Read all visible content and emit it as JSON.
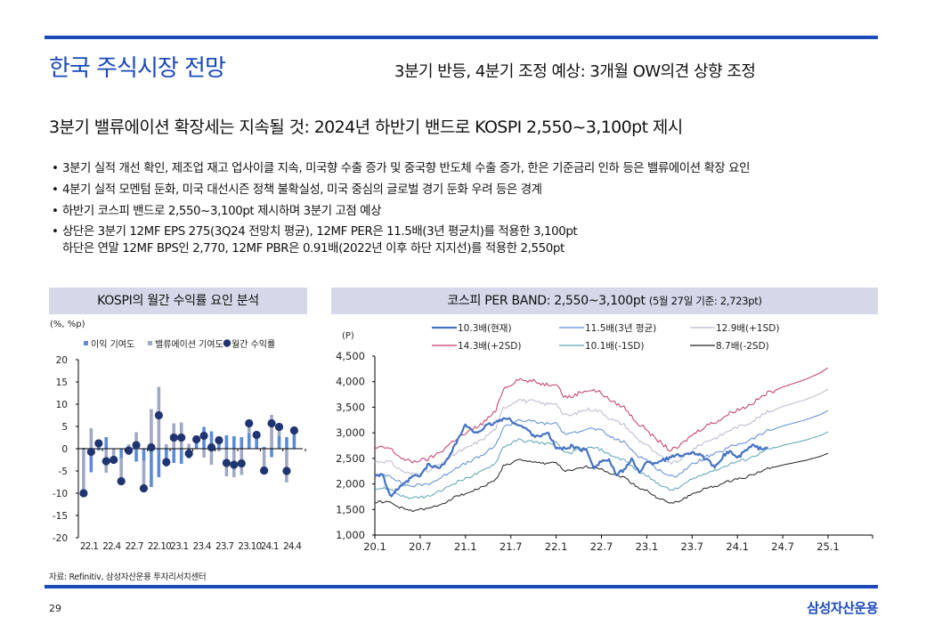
{
  "header": {
    "title": "한국 주식시장 전망",
    "subtitle": "3분기 반등, 4분기 조정 예상: 3개월 OW의견 상향 조정"
  },
  "headline": "3분기 밸류에이션 확장세는 지속될 것: 2024년 하반기 밴드로 KOSPI 2,550~3,100pt  제시",
  "bullets": [
    {
      "lines": [
        "3분기 실적 개선 확인, 제조업 재고 업사이클 지속, 미국향 수출 증가 및 중국향 반도체 수출 증가, 한은 기준금리 인하 등은 밸류에이션 확장 요인"
      ]
    },
    {
      "lines": [
        "4분기 실적 모멘텀 둔화, 미국 대선시즌 정책 불확실성, 미국 중심의 글로벌 경기 둔화 우려 등은 경계"
      ]
    },
    {
      "lines": [
        "하반기 코스피 밴드로 2,550~3,100pt  제시하며 3분기 고점 예상"
      ]
    },
    {
      "lines": [
        "상단은 3분기 12MF EPS 275(3Q24  전망치 평균), 12MF PER은 11.5배(3년 평균치)를 적용한 3,100pt",
        "하단은 연말 12MF BPS인 2,770, 12MF PBR은 0.91배(2022년 이후 하단 지지선)를 적용한 2,550pt"
      ]
    }
  ],
  "bullet_symbol": "•",
  "footer": {
    "source": "자료: Refinitiv, 삼성자산운용 투자리서치센터",
    "page_number": "29",
    "brand": "삼성자산운용"
  },
  "colors": {
    "accent": "#1a49b8",
    "panel_head_bg": "#d4d8e8",
    "eps_bar": "#5b8ad6",
    "valuation_bar": "#a0a8c4",
    "return_dot": "#1f3470",
    "kospi": "#4472c4",
    "band_mean": "#5b8ad6",
    "band_plus1": "#b7b9cc",
    "band_plus2": "#c0396b",
    "band_minus1": "#5aa3b4",
    "band_minus2": "#222222"
  },
  "chart_data": [
    {
      "type": "bar",
      "title": "KOSPI의 월간 수익률 요인 분석",
      "unit_label": "(%, %p)",
      "ylim": [
        -20,
        20
      ],
      "yticks": [
        "20",
        "15",
        "10",
        "5",
        "0",
        "-5",
        "-10",
        "-15",
        "-20"
      ],
      "ytick_values": [
        20,
        15,
        10,
        5,
        0,
        -5,
        -10,
        -15,
        -20
      ],
      "xtick_labels": [
        "22.1",
        "22.4",
        "22.7",
        "22.10",
        "23.1",
        "23.4",
        "23.7",
        "23.10",
        "24.1",
        "24.4"
      ],
      "xtick_every": 3,
      "legend": [
        "이익 기여도",
        "밸류에이션 기여도",
        "월간 수익률"
      ],
      "legend_position": "top",
      "categories": [
        "22.1",
        "22.2",
        "22.3",
        "22.4",
        "22.5",
        "22.6",
        "22.7",
        "22.8",
        "22.9",
        "22.10",
        "22.11",
        "22.12",
        "23.1",
        "23.2",
        "23.3",
        "23.4",
        "23.5",
        "23.6",
        "23.7",
        "23.8",
        "23.9",
        "23.10",
        "23.11",
        "23.12",
        "24.1",
        "24.2",
        "24.3",
        "24.4",
        "24.5"
      ],
      "series": [
        {
          "name": "이익 기여도",
          "kind": "bar",
          "values": [
            0.2,
            -5.3,
            -0.4,
            2.6,
            0.1,
            -2.1,
            -1.4,
            -2.9,
            -2.7,
            -8.6,
            -6.4,
            -4.0,
            -3.2,
            -3.4,
            -2.2,
            1.9,
            4.9,
            3.9,
            2.5,
            3.0,
            2.8,
            2.6,
            3.4,
            2.9,
            0.4,
            -1.9,
            2.8,
            2.6,
            4.1
          ]
        },
        {
          "name": "밸류에이션 기여도",
          "kind": "bar",
          "values": [
            -10.2,
            4.6,
            1.6,
            -5.4,
            -2.6,
            -5.2,
            1.0,
            3.7,
            -6.2,
            8.9,
            13.9,
            1.0,
            5.7,
            5.9,
            1.1,
            0.2,
            -2.0,
            -3.6,
            -0.6,
            -6.2,
            -6.4,
            -5.9,
            2.3,
            0.2,
            -5.3,
            7.6,
            2.1,
            -7.6,
            0.0
          ]
        },
        {
          "name": "월간 수익률",
          "kind": "dot",
          "values": [
            -10.0,
            -0.7,
            1.2,
            -2.8,
            -2.5,
            -7.3,
            -0.4,
            0.8,
            -8.9,
            0.3,
            7.5,
            -3.0,
            2.5,
            2.5,
            -1.1,
            2.1,
            2.9,
            0.3,
            1.9,
            -3.2,
            -3.6,
            -3.3,
            5.7,
            3.1,
            -4.9,
            5.7,
            4.9,
            -5.0,
            4.1
          ]
        }
      ]
    },
    {
      "type": "line",
      "title": "코스피 PER BAND: 2,550~3,100pt",
      "title_note": "(5월 27일 기준: 2,723pt)",
      "unit_label": "(P)",
      "ylim": [
        1000,
        4500
      ],
      "yticks": [
        "4,500",
        "4,000",
        "3,500",
        "3,000",
        "2,500",
        "2,000",
        "1,500",
        "1,000"
      ],
      "ytick_values": [
        4500,
        4000,
        3500,
        3000,
        2500,
        2000,
        1500,
        1000
      ],
      "xtick_labels": [
        "20.1",
        "20.7",
        "21.1",
        "21.7",
        "22.1",
        "22.7",
        "23.1",
        "23.7",
        "24.1",
        "24.7",
        "25.1"
      ],
      "xlim_months": [
        0,
        66
      ],
      "xtick_month_index": [
        0,
        6,
        12,
        18,
        24,
        30,
        36,
        42,
        48,
        54,
        60
      ],
      "legend_position": "top",
      "band_base_multiple": 8.7,
      "x_months": "monthly index from 20.1 (0) to 25.1 (60)",
      "band_base_values": [
        1640,
        1650,
        1640,
        1560,
        1500,
        1480,
        1500,
        1510,
        1560,
        1620,
        1700,
        1770,
        1810,
        1870,
        1920,
        2000,
        2080,
        2350,
        2400,
        2470,
        2440,
        2440,
        2410,
        2400,
        2420,
        2260,
        2250,
        2300,
        2330,
        2330,
        2300,
        2220,
        2170,
        2130,
        2020,
        1920,
        1870,
        1760,
        1700,
        1620,
        1640,
        1720,
        1800,
        1860,
        1920,
        1950,
        2000,
        2060,
        2100,
        2130,
        2180,
        2240,
        2300,
        2330,
        2370,
        2400,
        2430,
        2460,
        2500,
        2540,
        2600
      ],
      "series": [
        {
          "name": "10.3배(현재)",
          "kind": "kospi",
          "color_key": "kospi",
          "width": 2.2,
          "values": [
            2170,
            2200,
            1750,
            1900,
            2000,
            2150,
            2150,
            2370,
            2330,
            2350,
            2600,
            2870,
            3150,
            3010,
            3050,
            3150,
            3200,
            3280,
            3250,
            3150,
            3080,
            2950,
            2950,
            2980,
            2700,
            2690,
            2740,
            2680,
            2660,
            2330,
            2450,
            2470,
            2160,
            2290,
            2470,
            2240,
            2420,
            2410,
            2470,
            2500,
            2580,
            2560,
            2630,
            2560,
            2470,
            2300,
            2530,
            2650,
            2500,
            2640,
            2750,
            2690,
            2723
          ]
        },
        {
          "name": "11.5배(3년 평균)",
          "kind": "band",
          "multiple": 11.5,
          "color_key": "band_mean",
          "width": 1
        },
        {
          "name": "12.9배(+1SD)",
          "kind": "band",
          "multiple": 12.9,
          "color_key": "band_plus1",
          "width": 1
        },
        {
          "name": "14.3배(+2SD)",
          "kind": "band",
          "multiple": 14.3,
          "color_key": "band_plus2",
          "width": 1
        },
        {
          "name": "10.1배(-1SD)",
          "kind": "band",
          "multiple": 10.1,
          "color_key": "band_minus1",
          "width": 1
        },
        {
          "name": "8.7배(-2SD)",
          "kind": "band",
          "multiple": 8.7,
          "color_key": "band_minus2",
          "width": 1
        }
      ]
    }
  ]
}
